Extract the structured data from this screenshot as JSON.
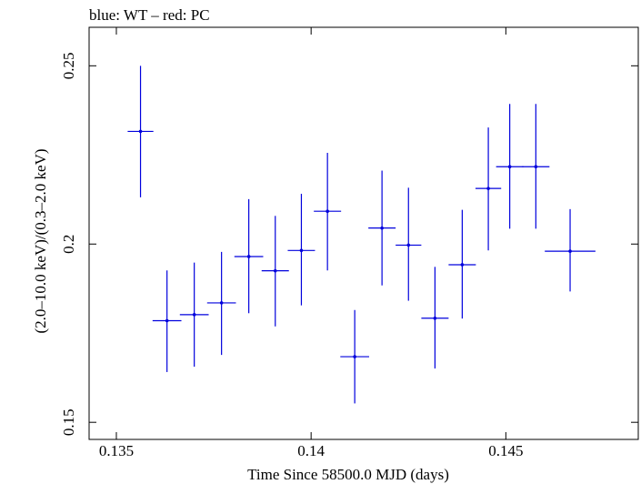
{
  "chart_data": {
    "type": "scatter",
    "title": "blue: WT – red: PC",
    "xlabel": "Time Since 58500.0 MJD (days)",
    "ylabel": "(2.0–10.0 keV)/(0.3–2.0 keV)",
    "xlim": [
      0.1343,
      0.1484
    ],
    "ylim": [
      0.1452,
      0.2608
    ],
    "x_ticks": [
      {
        "value": 0.135,
        "label": "0.135"
      },
      {
        "value": 0.14,
        "label": "0.14"
      },
      {
        "value": 0.145,
        "label": "0.145"
      }
    ],
    "y_ticks": [
      {
        "value": 0.15,
        "label": "0.15"
      },
      {
        "value": 0.2,
        "label": "0.2"
      },
      {
        "value": 0.25,
        "label": "0.25"
      }
    ],
    "grid": false,
    "series": [
      {
        "name": "WT",
        "color": "#0000dd",
        "points": [
          {
            "x": 0.13562,
            "y": 0.2316,
            "xerr": 0.00033,
            "yerr_low": 0.0185,
            "yerr_high": 0.0184
          },
          {
            "x": 0.1363,
            "y": 0.1785,
            "xerr": 0.00037,
            "yerr_low": 0.0144,
            "yerr_high": 0.0141
          },
          {
            "x": 0.137,
            "y": 0.1802,
            "xerr": 0.00037,
            "yerr_low": 0.0146,
            "yerr_high": 0.0146
          },
          {
            "x": 0.1377,
            "y": 0.1835,
            "xerr": 0.00037,
            "yerr_low": 0.0146,
            "yerr_high": 0.0143
          },
          {
            "x": 0.1384,
            "y": 0.1965,
            "xerr": 0.00037,
            "yerr_low": 0.0159,
            "yerr_high": 0.0161
          },
          {
            "x": 0.13908,
            "y": 0.1925,
            "xerr": 0.00035,
            "yerr_low": 0.0156,
            "yerr_high": 0.0154
          },
          {
            "x": 0.13975,
            "y": 0.1982,
            "xerr": 0.00035,
            "yerr_low": 0.0154,
            "yerr_high": 0.0159
          },
          {
            "x": 0.14042,
            "y": 0.2092,
            "xerr": 0.00035,
            "yerr_low": 0.0166,
            "yerr_high": 0.0164
          },
          {
            "x": 0.14112,
            "y": 0.1684,
            "xerr": 0.00037,
            "yerr_low": 0.0131,
            "yerr_high": 0.0131
          },
          {
            "x": 0.14182,
            "y": 0.2045,
            "xerr": 0.00035,
            "yerr_low": 0.0161,
            "yerr_high": 0.0161
          },
          {
            "x": 0.1425,
            "y": 0.1997,
            "xerr": 0.00033,
            "yerr_low": 0.0156,
            "yerr_high": 0.0161
          },
          {
            "x": 0.14318,
            "y": 0.1792,
            "xerr": 0.00035,
            "yerr_low": 0.0141,
            "yerr_high": 0.0144
          },
          {
            "x": 0.14388,
            "y": 0.1942,
            "xerr": 0.00035,
            "yerr_low": 0.0151,
            "yerr_high": 0.0154
          },
          {
            "x": 0.14455,
            "y": 0.2156,
            "xerr": 0.00033,
            "yerr_low": 0.0174,
            "yerr_high": 0.0171
          },
          {
            "x": 0.1451,
            "y": 0.2217,
            "xerr": 0.00035,
            "yerr_low": 0.0174,
            "yerr_high": 0.0176
          },
          {
            "x": 0.14577,
            "y": 0.2217,
            "xerr": 0.00035,
            "yerr_low": 0.0174,
            "yerr_high": 0.0176
          },
          {
            "x": 0.14665,
            "y": 0.198,
            "xerr": 0.00065,
            "yerr_low": 0.0113,
            "yerr_high": 0.0118
          }
        ]
      }
    ]
  }
}
